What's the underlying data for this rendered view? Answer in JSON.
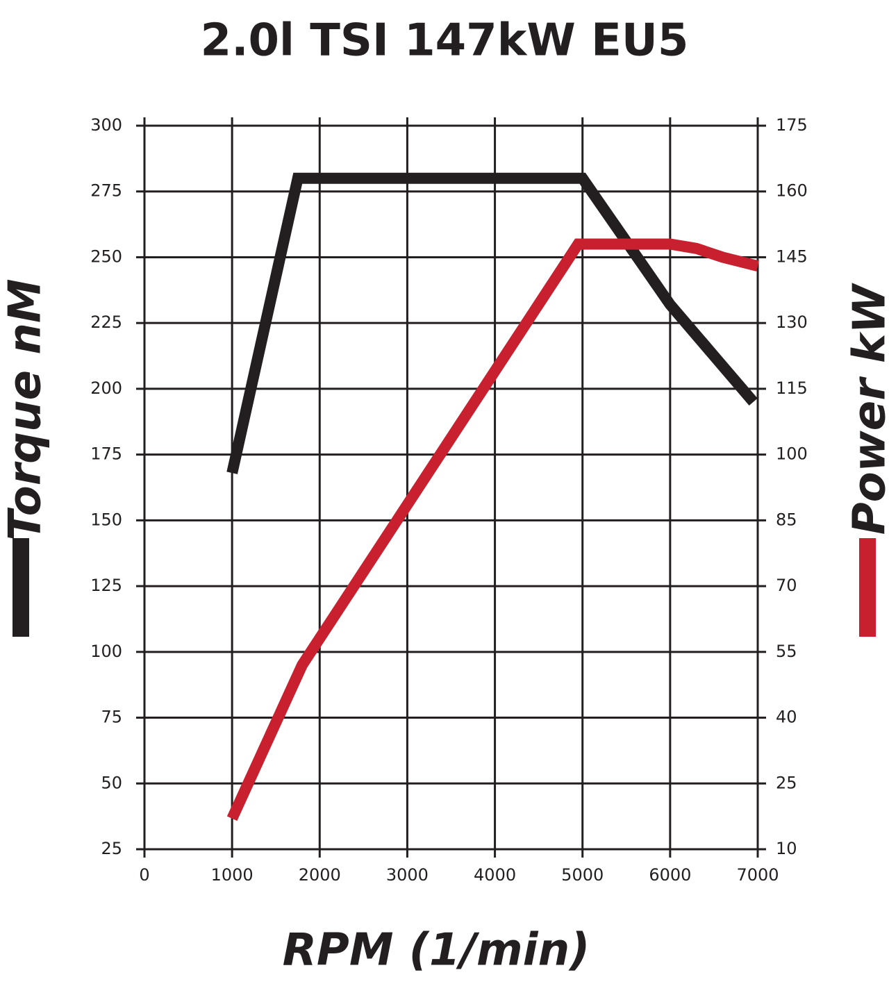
{
  "chart_data": {
    "type": "line",
    "title": "2.0l TSI 147kW EU5",
    "x_label": "RPM (1/min)",
    "xlim": [
      0,
      7000
    ],
    "xticks": [
      0,
      1000,
      2000,
      3000,
      4000,
      5000,
      6000,
      7000
    ],
    "ylim": [
      25,
      300
    ],
    "yticks": [
      25,
      50,
      75,
      100,
      125,
      150,
      175,
      200,
      225,
      250,
      275,
      300
    ],
    "y2lim": [
      10,
      175
    ],
    "y2ticks": [
      10,
      25,
      40,
      55,
      70,
      85,
      100,
      115,
      130,
      145,
      160,
      175
    ],
    "grid": true,
    "series": [
      {
        "name": "Torque nM",
        "color": "#231f20",
        "x": [
          1000,
          1750,
          5000,
          6000,
          6950
        ],
        "values": [
          168,
          280,
          280,
          232,
          195
        ]
      },
      {
        "name": "Power kW",
        "color": "#c8202f",
        "axis": "y2",
        "x": [
          1000,
          1800,
          4950,
          6000,
          6300,
          6600,
          7000
        ],
        "values": [
          17,
          52,
          148,
          148,
          147,
          145,
          143
        ]
      }
    ]
  }
}
